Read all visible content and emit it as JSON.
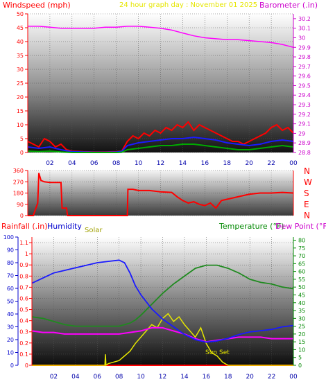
{
  "header": {
    "left_label": "Windspeed (mph)",
    "title": "24 hour graph day : November 01 2025",
    "right_label": "Barometer (.in)"
  },
  "direction_labels": [
    "N",
    "W",
    "S",
    "E",
    "N"
  ],
  "bottom_header": {
    "rain_label": "Rainfall (.in)",
    "humidity_label": "Humidity",
    "solar_label": "Solar",
    "temp_label": "Temperature (°F)",
    "dew_label": "Dew Point (°F)"
  },
  "sunset_label": "Sun Set",
  "colors": {
    "windspeed": "#ff0000",
    "wind_avg": "#1a1aff",
    "wind_low": "#00aa00",
    "barometer": "#ff00ff",
    "direction": "#ff0000",
    "humidity": "#1a1aff",
    "temperature": "#1f8a1f",
    "dew_point": "#ff00ff",
    "solar": "#e6e600",
    "rain": "#ff0000",
    "axis_wind": "#ff0000",
    "axis_baro": "#cc00cc",
    "axis_humidity": "#0000cc",
    "axis_temp": "#008800",
    "time_axis": "#0000aa",
    "title": "#e6e600"
  },
  "chart_data": [
    {
      "type": "line",
      "name": "wind",
      "x_ticks": [
        "02",
        "04",
        "06",
        "08",
        "10",
        "12",
        "14",
        "16",
        "18",
        "20",
        "22",
        "00"
      ],
      "y_left": {
        "label": "Windspeed (mph)",
        "ticks": [
          0,
          5,
          10,
          15,
          20,
          25,
          30,
          35,
          40,
          45,
          50
        ],
        "ylim": [
          0,
          50
        ]
      },
      "y_right": {
        "label": "Barometer (.in)",
        "ticks": [
          28.8,
          28.9,
          29.0,
          29.1,
          29.2,
          29.3,
          29.4,
          29.5,
          29.6,
          29.7,
          29.8,
          29.9,
          30.0,
          30.1,
          30.2
        ],
        "ticks_text": [
          "28.8",
          "28.9",
          "29",
          "29.1",
          "29.2",
          "29.3",
          "29.4",
          "29.5",
          "29.6",
          "29.7",
          "29.8",
          "29.9",
          "30",
          "30.1",
          "30.2"
        ],
        "ylim": [
          28.8,
          30.25
        ]
      },
      "series": [
        {
          "key": "gust",
          "axis": "left",
          "x": [
            0,
            0.5,
            1,
            1.5,
            2,
            2.5,
            3,
            3.5,
            4,
            5,
            6,
            7,
            8,
            8.5,
            9,
            9.5,
            10,
            10.5,
            11,
            11.5,
            12,
            12.5,
            13,
            13.5,
            14,
            14.5,
            15,
            15.5,
            16,
            16.5,
            17,
            17.5,
            18,
            18.5,
            19,
            19.5,
            20,
            20.5,
            21,
            21.5,
            22,
            22.5,
            23,
            23.5,
            24
          ],
          "values": [
            4,
            3,
            2,
            5,
            4,
            2,
            3,
            1,
            0.5,
            0.3,
            0.2,
            0.2,
            0.3,
            0.5,
            4,
            6,
            5,
            7,
            6,
            8,
            7,
            9,
            8,
            10,
            9,
            11,
            8,
            10,
            9,
            8,
            7,
            6,
            5,
            4,
            4,
            3,
            4,
            5,
            6,
            7,
            9,
            10,
            8,
            9,
            7
          ]
        },
        {
          "key": "avg",
          "axis": "left",
          "x": [
            0,
            1,
            2,
            3,
            4,
            5,
            6,
            7,
            8,
            8.5,
            9,
            10,
            11,
            12,
            13,
            14,
            15,
            16,
            17,
            18,
            19,
            20,
            21,
            22,
            23,
            24
          ],
          "values": [
            2,
            1.5,
            2,
            1,
            0.3,
            0.2,
            0.1,
            0.1,
            0.2,
            0.4,
            2.5,
            3.5,
            4,
            4.5,
            5,
            5,
            5.5,
            5,
            4.5,
            3.5,
            3,
            2.5,
            3,
            4,
            4.5,
            4
          ]
        },
        {
          "key": "low",
          "axis": "left",
          "x": [
            0,
            1,
            2,
            3,
            4,
            5,
            6,
            7,
            8,
            8.5,
            9,
            10,
            11,
            12,
            13,
            14,
            15,
            16,
            17,
            18,
            19,
            20,
            21,
            22,
            23,
            24
          ],
          "values": [
            0.5,
            0.3,
            0.5,
            0.2,
            0,
            0,
            0,
            0,
            0,
            0.1,
            1,
            1.5,
            2,
            2.5,
            2.5,
            3,
            3,
            2.5,
            2,
            1.5,
            1,
            1,
            1.5,
            2,
            2.5,
            2
          ]
        },
        {
          "key": "baro",
          "axis": "right",
          "x": [
            0,
            1,
            2,
            3,
            4,
            5,
            6,
            7,
            8,
            9,
            10,
            11,
            12,
            13,
            14,
            15,
            16,
            17,
            18,
            19,
            20,
            21,
            22,
            23,
            24
          ],
          "values": [
            30.12,
            30.12,
            30.11,
            30.1,
            30.1,
            30.1,
            30.1,
            30.11,
            30.11,
            30.12,
            30.12,
            30.11,
            30.1,
            30.08,
            30.05,
            30.02,
            30.0,
            29.99,
            29.98,
            29.98,
            29.97,
            29.96,
            29.95,
            29.93,
            29.9
          ]
        }
      ]
    },
    {
      "type": "line",
      "name": "direction",
      "y_left": {
        "ticks": [
          0,
          90,
          180,
          270,
          360
        ],
        "ylim": [
          0,
          360
        ]
      },
      "series": [
        {
          "key": "dir",
          "axis": "left",
          "x": [
            0,
            0.5,
            0.9,
            1.0,
            1.2,
            1.5,
            2,
            2.5,
            3,
            3.1,
            3.5,
            3.6,
            4,
            6,
            8,
            9.0,
            9.05,
            9.5,
            10,
            11,
            12,
            13,
            13.5,
            14,
            14.5,
            15,
            15.5,
            16,
            16.5,
            17,
            17.5,
            18,
            19,
            20,
            21,
            22,
            23,
            24
          ],
          "values": [
            0,
            0,
            100,
            340,
            280,
            270,
            265,
            265,
            265,
            60,
            60,
            0,
            0,
            0,
            0,
            0,
            210,
            210,
            200,
            200,
            190,
            185,
            150,
            120,
            100,
            110,
            90,
            80,
            100,
            60,
            120,
            130,
            150,
            170,
            180,
            180,
            185,
            180
          ]
        }
      ]
    },
    {
      "type": "line",
      "name": "weather",
      "y_left_outer": {
        "label": "Humidity",
        "ticks": [
          0,
          10,
          20,
          30,
          40,
          50,
          60,
          70,
          80,
          90,
          100
        ],
        "ylim": [
          0,
          100
        ]
      },
      "y_left_inner": {
        "label": "Rainfall (.in)",
        "ticks": [
          0,
          0.1,
          0.2,
          0.3,
          0.4,
          0.5,
          0.6,
          0.7,
          0.8,
          0.9,
          1,
          1.1
        ],
        "ylim": [
          0,
          1.15
        ]
      },
      "y_right": {
        "label": "Temperature (°F)",
        "ticks": [
          0,
          5,
          10,
          15,
          20,
          25,
          30,
          35,
          40,
          45,
          50,
          55,
          60,
          65,
          70,
          75,
          80
        ],
        "ylim": [
          0,
          82
        ]
      },
      "series": [
        {
          "key": "humidity",
          "axis": "outer",
          "x": [
            0,
            1,
            2,
            3,
            4,
            5,
            6,
            7,
            8,
            8.5,
            9,
            9.5,
            10,
            11,
            12,
            13,
            14,
            15,
            16,
            17,
            18,
            19,
            20,
            21,
            22,
            23,
            24
          ],
          "values": [
            64,
            68,
            72,
            74,
            76,
            78,
            80,
            81,
            82,
            80,
            72,
            62,
            55,
            44,
            36,
            30,
            24,
            20,
            18,
            19,
            21,
            24,
            26,
            27,
            28,
            30,
            31
          ]
        },
        {
          "key": "temperature",
          "axis": "right",
          "x": [
            0,
            1,
            2,
            3,
            4,
            5,
            6,
            7,
            8,
            9,
            9.5,
            10,
            11,
            12,
            13,
            14,
            15,
            16,
            17,
            18,
            19,
            20,
            21,
            22,
            23,
            24
          ],
          "values": [
            31,
            30,
            28,
            26,
            25,
            25,
            25,
            25,
            25,
            27,
            29,
            32,
            39,
            46,
            52,
            57,
            62,
            64,
            64,
            62,
            59,
            55,
            53,
            52,
            50,
            49
          ]
        },
        {
          "key": "dew",
          "axis": "right",
          "x": [
            0,
            1,
            2,
            3,
            4,
            5,
            6,
            7,
            8,
            9,
            10,
            11,
            12,
            13,
            14,
            15,
            16,
            17,
            18,
            19,
            20,
            21,
            22,
            23,
            24
          ],
          "values": [
            22,
            21,
            21,
            20,
            20,
            20,
            20,
            20,
            20,
            21,
            22,
            24,
            24,
            22,
            20,
            17,
            15,
            16,
            17,
            18,
            18,
            18,
            17,
            17,
            17
          ]
        },
        {
          "key": "solar",
          "axis": "right",
          "x": [
            0,
            6.7,
            6.75,
            6.8,
            7,
            8,
            8.5,
            9,
            9.5,
            10,
            10.5,
            11,
            11.5,
            12,
            12.5,
            13,
            13.5,
            14,
            14.5,
            15,
            15.5,
            16,
            16.5,
            17,
            17.5,
            18,
            24
          ],
          "values": [
            0,
            0,
            7,
            0,
            1,
            3,
            6,
            9,
            14,
            18,
            22,
            26,
            24,
            30,
            33,
            28,
            31,
            26,
            22,
            18,
            24,
            14,
            8,
            6,
            2,
            0,
            0
          ]
        },
        {
          "key": "rain",
          "axis": "inner",
          "x": [
            0,
            24
          ],
          "values": [
            0,
            0
          ]
        }
      ]
    }
  ]
}
